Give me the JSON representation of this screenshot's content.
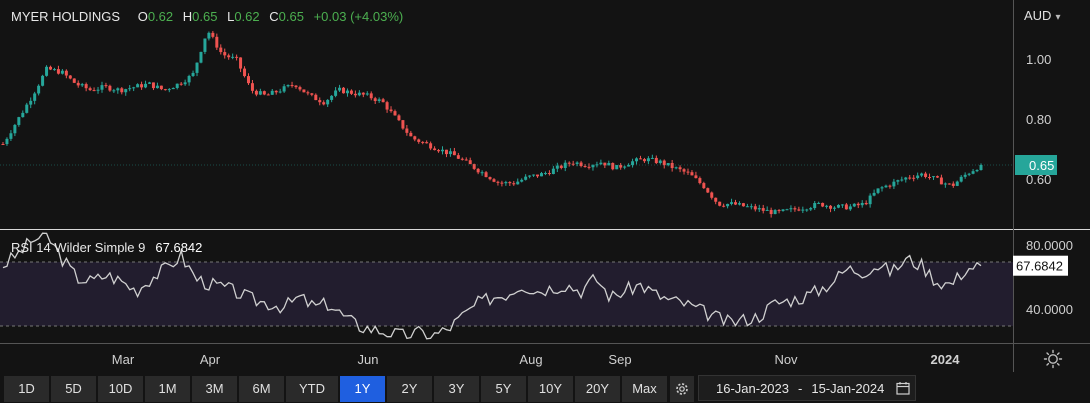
{
  "legend": {
    "symbol": "MYER HOLDINGS",
    "open_label": "O",
    "open": "0.62",
    "high_label": "H",
    "high": "0.65",
    "low_label": "L",
    "low": "0.62",
    "close_label": "C",
    "close": "0.65",
    "change": "+0.03 (+4.03%)"
  },
  "currency": "AUD",
  "rsi_legend": {
    "label": "RSI 14 Wilder Simple 9",
    "value": "67.6842"
  },
  "ranges": [
    "1D",
    "5D",
    "10D",
    "1M",
    "3M",
    "6M",
    "YTD",
    "1Y",
    "2Y",
    "3Y",
    "5Y",
    "10Y",
    "20Y",
    "Max"
  ],
  "active_range": "1Y",
  "date_range": {
    "from": "16-Jan-2023",
    "separator": "-",
    "to": "15-Jan-2024"
  },
  "icons": {
    "settings": "gear-icon",
    "date": "calendar-icon",
    "chart": "sun-settings-icon",
    "dropdown": "chevron-down-icon"
  },
  "colors": {
    "up": "#26a69a",
    "down": "#ef5350",
    "price_badge": "#26a69a",
    "rsi_line": "#d0d0d0",
    "active": "#1f5fe0"
  },
  "chart_data": [
    {
      "type": "candlestick",
      "title": "MYER HOLDINGS",
      "y_unit": "AUD",
      "y_ticks": [
        "1.00",
        "0.80",
        "0.60"
      ],
      "ylim": [
        0.44,
        1.2
      ],
      "x_ticks": [
        "Mar",
        "Apr",
        "Jun",
        "Aug",
        "Sep",
        "Nov",
        "2024"
      ],
      "last_price": "0.65",
      "closes_approx": [
        0.72,
        0.8,
        0.88,
        0.97,
        0.96,
        0.92,
        0.9,
        0.91,
        0.9,
        0.91,
        0.92,
        0.9,
        0.92,
        0.95,
        1.1,
        1.02,
        1.0,
        0.9,
        0.88,
        0.9,
        0.92,
        0.88,
        0.86,
        0.9,
        0.89,
        0.88,
        0.86,
        0.8,
        0.74,
        0.72,
        0.7,
        0.68,
        0.65,
        0.62,
        0.59,
        0.59,
        0.61,
        0.62,
        0.64,
        0.66,
        0.65,
        0.66,
        0.64,
        0.66,
        0.67,
        0.66,
        0.64,
        0.62,
        0.58,
        0.52,
        0.52,
        0.51,
        0.5,
        0.49,
        0.5,
        0.51,
        0.52,
        0.51,
        0.51,
        0.52,
        0.57,
        0.59,
        0.61,
        0.62,
        0.6,
        0.58,
        0.62,
        0.65
      ],
      "grid": false
    },
    {
      "type": "line",
      "title": "RSI 14 Wilder Simple 9",
      "y_ticks": [
        "80.0000",
        "40.0000"
      ],
      "ylim": [
        20,
        90
      ],
      "reference_lines": [
        70,
        30
      ],
      "last_value": "67.6842",
      "values_approx": [
        68,
        75,
        84,
        86,
        72,
        60,
        58,
        62,
        58,
        52,
        60,
        66,
        74,
        60,
        56,
        54,
        50,
        46,
        44,
        42,
        48,
        42,
        44,
        36,
        30,
        28,
        26,
        24,
        26,
        24,
        28,
        36,
        44,
        48,
        50,
        56,
        52,
        54,
        56,
        52,
        60,
        48,
        52,
        56,
        50,
        46,
        44,
        40,
        36,
        32,
        34,
        36,
        44,
        46,
        48,
        52,
        58,
        66,
        64,
        68,
        64,
        72,
        68,
        58,
        56,
        66,
        68
      ]
    }
  ]
}
